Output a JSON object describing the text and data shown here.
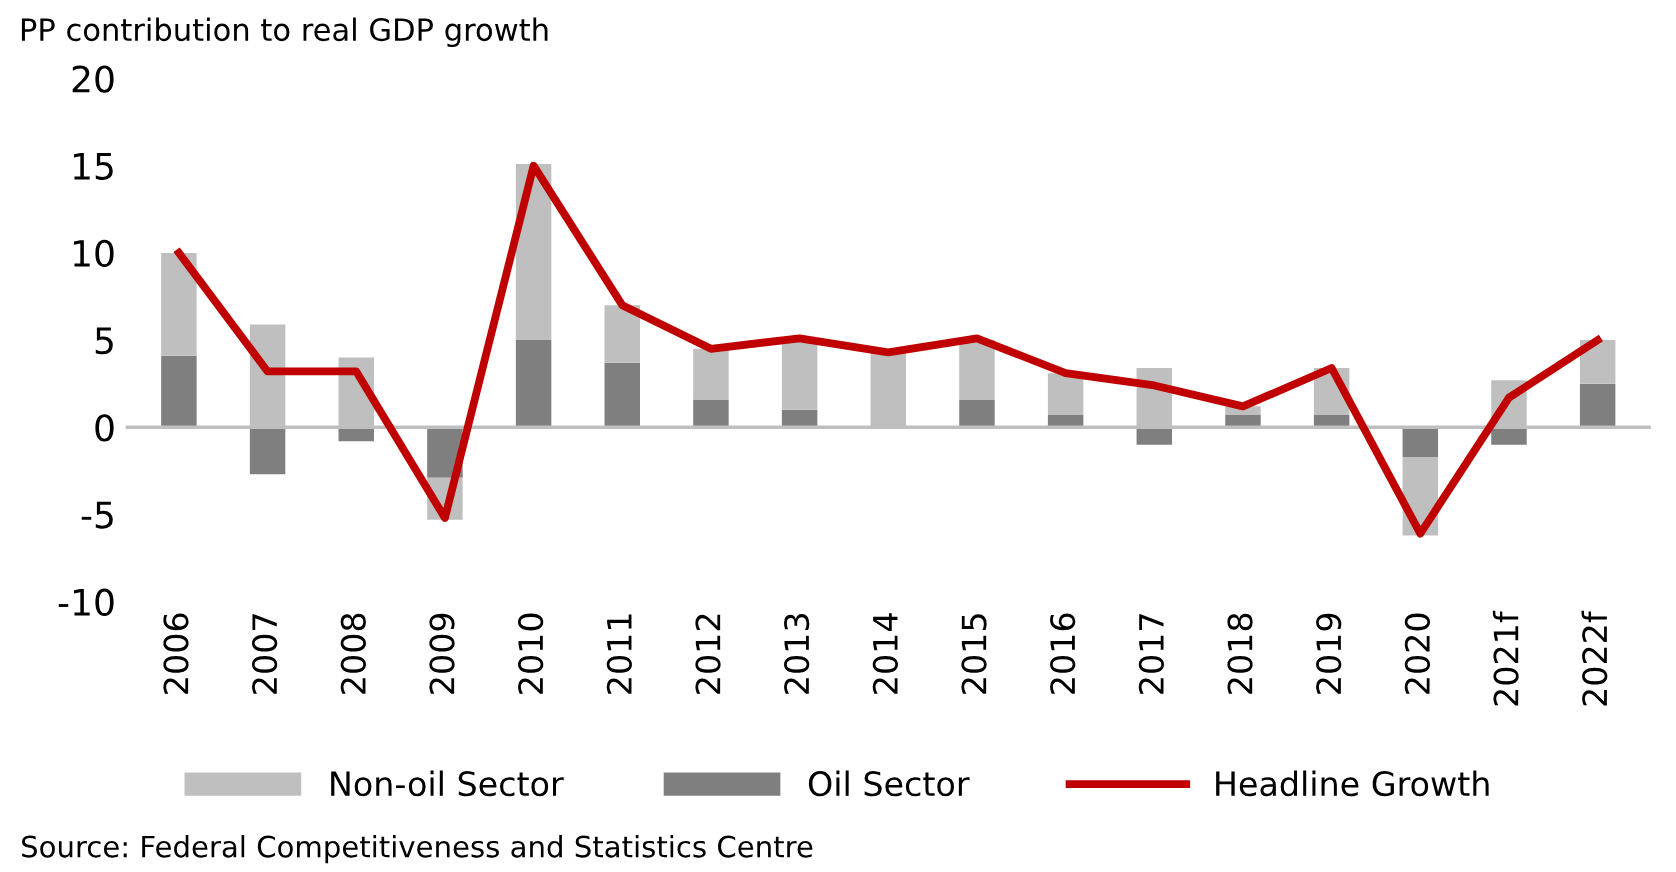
{
  "chart_data": {
    "type": "bar",
    "stacked": true,
    "ylabel": "PP contribution to real GDP growth",
    "categories": [
      "2006",
      "2007",
      "2008",
      "2009",
      "2010",
      "2011",
      "2012",
      "2013",
      "2014",
      "2015",
      "2016",
      "2017",
      "2018",
      "2019",
      "2020",
      "2021f",
      "2022f"
    ],
    "series": [
      {
        "name": "Oil Sector",
        "color": "#7f7f7f",
        "values": [
          4.1,
          -2.7,
          -0.8,
          -2.9,
          5.0,
          3.7,
          1.6,
          1.0,
          0,
          1.6,
          0.7,
          -1.0,
          0.7,
          0.7,
          -1.7,
          -1.0,
          2.5
        ]
      },
      {
        "name": "Non-oil Sector",
        "color": "#bfbfbf",
        "values": [
          5.9,
          5.9,
          4.0,
          -2.4,
          10.1,
          3.3,
          2.9,
          3.9,
          4.3,
          3.4,
          2.4,
          3.4,
          0.5,
          2.7,
          -4.5,
          2.7,
          2.5
        ]
      },
      {
        "name": "Headline Growth",
        "type": "line",
        "color": "#c00000",
        "values": [
          10.0,
          3.2,
          3.2,
          -5.2,
          15.0,
          7.0,
          4.5,
          5.1,
          4.3,
          5.1,
          3.1,
          2.4,
          1.2,
          3.4,
          -6.1,
          1.7,
          5.0
        ]
      }
    ],
    "ylim": [
      -10,
      20
    ],
    "yticks": [
      -10,
      -5,
      0,
      5,
      10,
      15,
      20
    ],
    "legend": "bottom",
    "annotations": [
      "Source: Federal Competitiveness and Statistics Centre"
    ]
  }
}
